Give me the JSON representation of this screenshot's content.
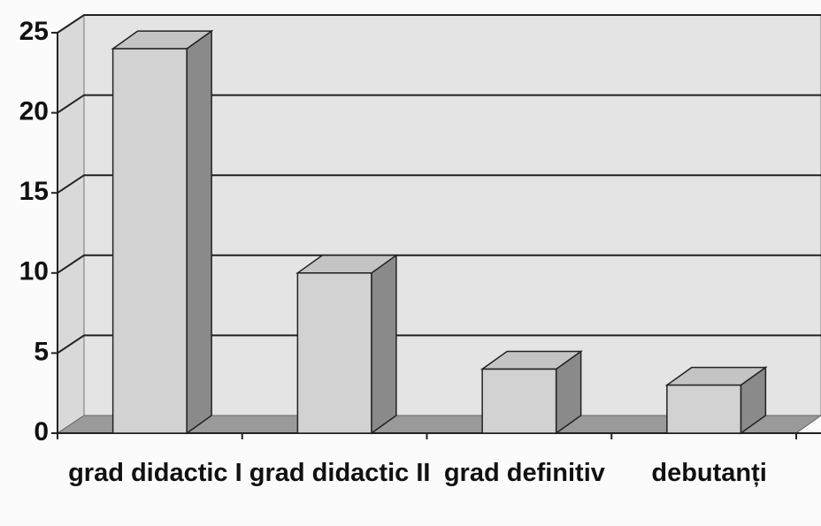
{
  "chart_data": {
    "type": "bar3d",
    "categories": [
      "grad didactic I",
      "grad didactic II",
      "grad definitiv",
      "debutanți"
    ],
    "values": [
      24,
      10,
      4,
      3
    ],
    "color": "#d2d2d2",
    "ylim": [
      0,
      25
    ],
    "yticks": [
      0,
      5,
      10,
      15,
      20,
      25
    ],
    "grid": true
  }
}
